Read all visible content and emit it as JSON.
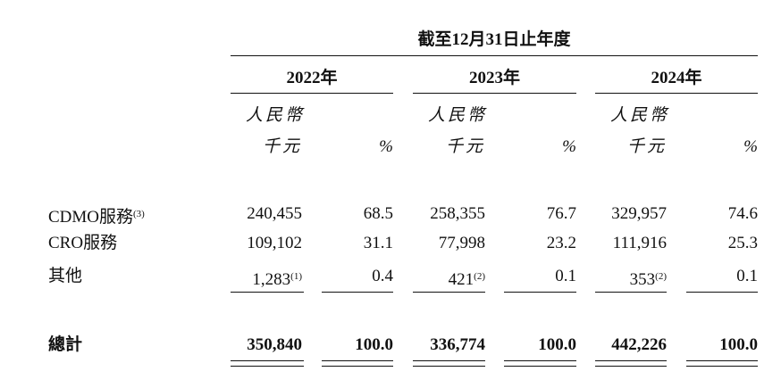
{
  "header": {
    "period": "截至12月31日止年度",
    "years": [
      "2022年",
      "2023年",
      "2024年"
    ],
    "currency": "人民幣",
    "unit": "千元",
    "percent": "%"
  },
  "table": {
    "rows": [
      {
        "label": "CDMO服務",
        "note": "(3)",
        "cells": [
          "240,455",
          "68.5",
          "258,355",
          "76.7",
          "329,957",
          "74.6"
        ]
      },
      {
        "label": "CRO服務",
        "cells": [
          "109,102",
          "31.1",
          "77,998",
          "23.2",
          "111,916",
          "25.3"
        ]
      },
      {
        "label": "其他",
        "cells": [
          {
            "text": "1,283",
            "note": "(1)"
          },
          "0.4",
          {
            "text": "421",
            "note": "(2)"
          },
          "0.1",
          {
            "text": "353",
            "note": "(2)"
          },
          "0.1"
        ]
      }
    ],
    "total": {
      "label": "總計",
      "cells": [
        "350,840",
        "100.0",
        "336,774",
        "100.0",
        "442,226",
        "100.0"
      ]
    }
  }
}
